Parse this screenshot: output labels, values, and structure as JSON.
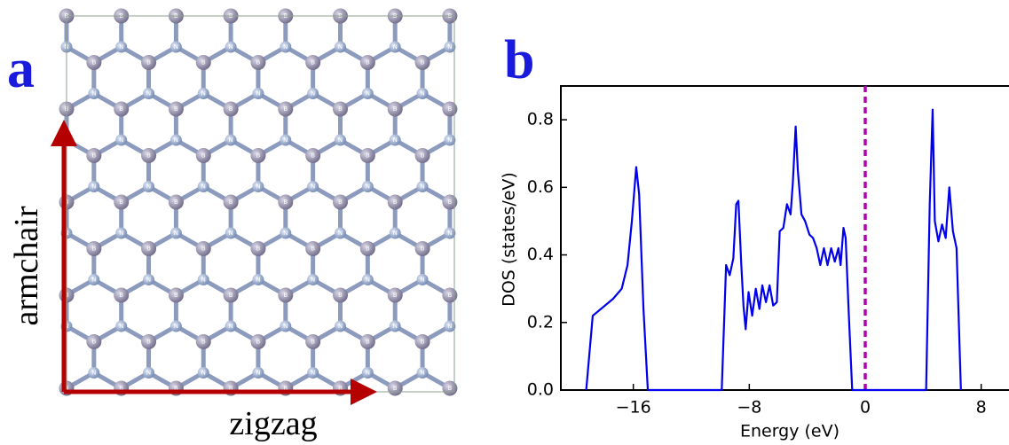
{
  "panel_a": {
    "label": "a",
    "atom_labels": [
      "B",
      "N"
    ],
    "vertical_direction": "armchair",
    "horizontal_direction": "zigzag"
  },
  "chart_data": {
    "type": "line",
    "panel_label": "b",
    "xlabel": "Energy (eV)",
    "ylabel": "DOS (states/eV)",
    "x": [
      -19.25,
      -18.8,
      -17.4,
      -16.8,
      -16.4,
      -16.1,
      -15.8,
      -15.6,
      -15.3,
      -15.0,
      -9.9,
      -9.6,
      -9.35,
      -9.1,
      -8.9,
      -8.75,
      -8.55,
      -8.4,
      -8.25,
      -8.05,
      -7.8,
      -7.55,
      -7.3,
      -7.1,
      -6.85,
      -6.6,
      -6.35,
      -6.1,
      -5.9,
      -5.65,
      -5.4,
      -5.15,
      -5.0,
      -4.8,
      -4.65,
      -4.4,
      -4.15,
      -3.85,
      -3.6,
      -3.35,
      -3.1,
      -2.85,
      -2.6,
      -2.35,
      -2.1,
      -1.85,
      -1.7,
      -1.5,
      -1.35,
      -1.15,
      -0.9,
      4.2,
      4.45,
      4.65,
      4.8,
      5.05,
      5.3,
      5.55,
      5.8,
      6.05,
      6.3,
      6.6
    ],
    "values": [
      0,
      0.22,
      0.27,
      0.3,
      0.37,
      0.5,
      0.66,
      0.58,
      0.24,
      0,
      0,
      0.37,
      0.34,
      0.39,
      0.55,
      0.56,
      0.37,
      0.25,
      0.18,
      0.29,
      0.22,
      0.3,
      0.24,
      0.31,
      0.26,
      0.31,
      0.25,
      0.26,
      0.47,
      0.48,
      0.55,
      0.52,
      0.61,
      0.78,
      0.65,
      0.52,
      0.5,
      0.46,
      0.45,
      0.42,
      0.37,
      0.42,
      0.37,
      0.42,
      0.38,
      0.42,
      0.37,
      0.48,
      0.45,
      0.24,
      0,
      0,
      0.55,
      0.83,
      0.5,
      0.44,
      0.49,
      0.45,
      0.6,
      0.47,
      0.42,
      0
    ],
    "color": "#0000ee",
    "xlim": [
      -21,
      10
    ],
    "xticks": [
      {
        "value": -16,
        "label": "−16"
      },
      {
        "value": -8,
        "label": "−8"
      },
      0,
      8
    ],
    "ylim": [
      0,
      0.9
    ],
    "yticks": [
      {
        "value": 0,
        "label": "0.0"
      },
      0.2,
      0.4,
      0.6,
      0.8
    ],
    "vline": {
      "x": 0,
      "color": "#b000b0"
    }
  }
}
